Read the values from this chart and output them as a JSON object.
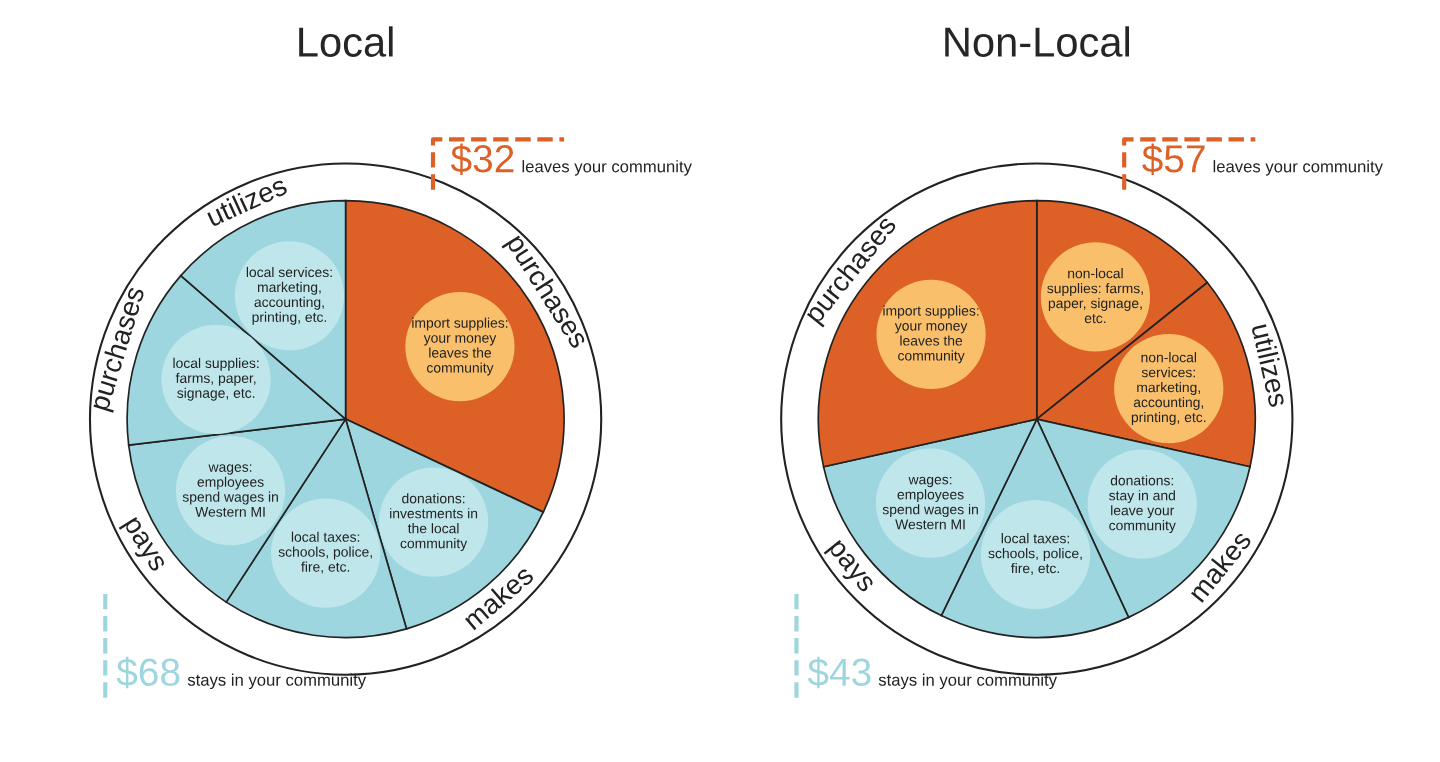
{
  "chart_data": [
    {
      "type": "pie",
      "title": "Local",
      "categories": [
        "import supplies:\nyour money\nleaves the\ncommunity",
        "donations:\ninvestments in\nthe local\ncommunity",
        "local taxes:\nschools, police,\nfire, etc.",
        "wages:\nemployees\nspend wages in\nWestern MI",
        "local supplies:\nfarms, paper,\nsignage, etc.",
        "local services:\nmarketing,\naccounting,\nprinting, etc."
      ],
      "values": [
        32,
        13.5,
        13.7,
        13.9,
        13.3,
        13.6
      ],
      "colors": [
        "#dd6026",
        "#9dd6df",
        "#9dd6df",
        "#9dd6df",
        "#9dd6df",
        "#9dd6df"
      ],
      "annotations": [
        {
          "text": "purchases",
          "x": "import supplies:\nyour money\nleaves the\ncommunity"
        },
        {
          "text": "makes",
          "x": "donations:\ninvestments in\nthe local\ncommunity"
        },
        {
          "text": "pays",
          "x": "wages:\nemployees\nspend wages in\nWestern MI"
        },
        {
          "text": "purchases",
          "x": "local supplies:\nfarms, paper,\nsignage, etc."
        },
        {
          "text": "utilizes",
          "x": "local services:\nmarketing,\naccounting,\nprinting, etc."
        },
        "$32 leaves your community",
        "$68 stays in your community"
      ]
    },
    {
      "type": "pie",
      "title": "Non-Local",
      "categories": [
        "non-local\nsupplies: farms,\npaper, signage,\netc.",
        "non-local\nservices:\nmarketing,\naccounting,\nprinting, etc.",
        "donations:\nstay in and\nleave your\ncommunity",
        "local taxes:\nschools, police,\nfire, etc.",
        "wages:\nemployees\nspend wages in\nWestern MI",
        "import supplies:\nyour money\nleaves the\ncommunity"
      ],
      "values": [
        14.25,
        14.25,
        14.6,
        14.1,
        14.3,
        28.5
      ],
      "colors": [
        "#dd6026",
        "#dd6026",
        "#9dd6df",
        "#9dd6df",
        "#9dd6df",
        "#dd6026"
      ],
      "annotations": [
        {
          "text": "utilizes",
          "x": "non-local\nservices:\nmarketing,\naccounting,\nprinting, etc."
        },
        {
          "text": "makes",
          "x": "donations:\nstay in and\nleave your\ncommunity"
        },
        {
          "text": "pays",
          "x": "wages:\nemployees\nspend wages in\nWestern MI"
        },
        {
          "text": "purchases",
          "x": "import supplies:\nyour money\nleaves the\ncommunity"
        },
        "$57 leaves your community",
        "$43 stays in your community"
      ]
    }
  ]
}
